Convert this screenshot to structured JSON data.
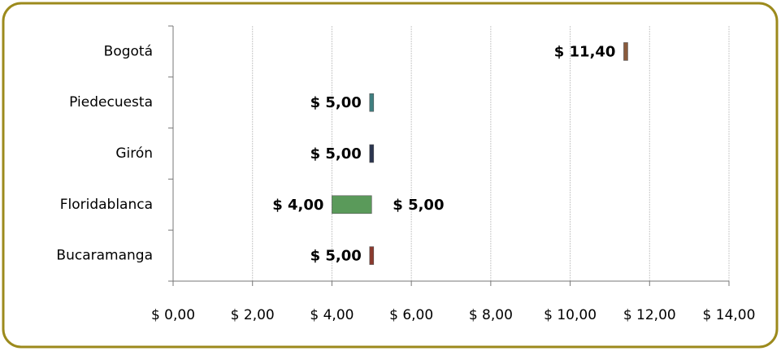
{
  "chart_data": {
    "type": "range-bar",
    "categories": [
      "Bucaramanga",
      "Floridablanca",
      "Girón",
      "Piedecuesta",
      "Bogotá"
    ],
    "colors": [
      "#8b3a2e",
      "#5a9a5a",
      "#2b3550",
      "#3f7f80",
      "#8a5a3c"
    ],
    "low": {
      "values": [
        5,
        4,
        5,
        5,
        11.4
      ],
      "value_labels": [
        "$ 5,00",
        "$ 4,00",
        "$ 5,00",
        "$ 5,00",
        "$ 11,40"
      ]
    },
    "high": {
      "values": [
        5,
        5,
        5,
        5,
        11.4
      ],
      "value_labels": [
        null,
        "$ 5,00",
        null,
        null,
        null
      ]
    },
    "xlim": [
      0,
      14
    ],
    "xticks": [
      {
        "value": 0,
        "label": "$ 0,00"
      },
      {
        "value": 2,
        "label": "$ 2,00"
      },
      {
        "value": 4,
        "label": "$ 4,00"
      },
      {
        "value": 6,
        "label": "$ 6,00"
      },
      {
        "value": 8,
        "label": "$ 8,00"
      },
      {
        "value": 10,
        "label": "$ 10,00"
      },
      {
        "value": 12,
        "label": "$ 12,00"
      },
      {
        "value": 14,
        "label": "$ 14,00"
      }
    ],
    "grid": true
  }
}
